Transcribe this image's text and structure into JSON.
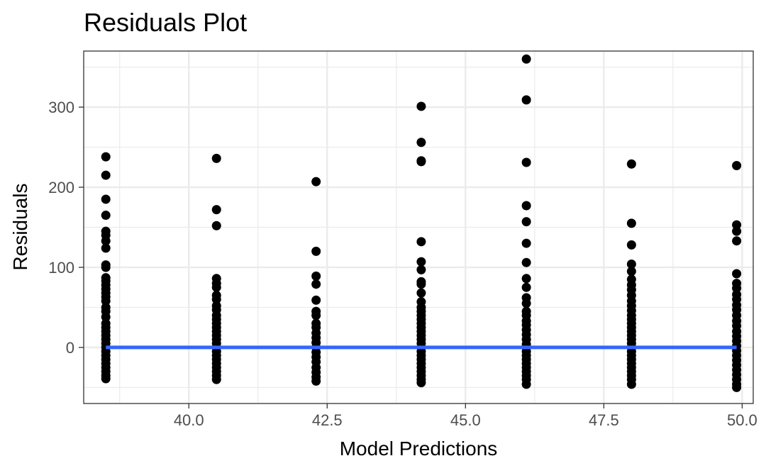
{
  "chart_data": {
    "type": "scatter",
    "title": "Residuals Plot",
    "xlabel": "Model Predictions",
    "ylabel": "Residuals",
    "xlim": [
      38.1,
      50.2
    ],
    "ylim": [
      -70,
      370
    ],
    "x_ticks": [
      40.0,
      42.5,
      45.0,
      47.5,
      50.0
    ],
    "x_tick_labels": [
      "40.0",
      "42.5",
      "45.0",
      "47.5",
      "50.0"
    ],
    "y_ticks": [
      0,
      100,
      200,
      300
    ],
    "y_tick_labels": [
      "0",
      "100",
      "200",
      "300"
    ],
    "grid": true,
    "colors": {
      "points": "#000000",
      "fit_line": "#3366ff",
      "grid": "#ebebeb",
      "panel_border": "#333333"
    },
    "series": [
      {
        "type": "scatter",
        "points": [
          {
            "x": 38.5,
            "y": 238
          },
          {
            "x": 38.5,
            "y": 215
          },
          {
            "x": 38.5,
            "y": 185
          },
          {
            "x": 38.5,
            "y": 165
          },
          {
            "x": 38.5,
            "y": 145
          },
          {
            "x": 38.5,
            "y": 140
          },
          {
            "x": 38.5,
            "y": 133
          },
          {
            "x": 38.5,
            "y": 124
          },
          {
            "x": 38.5,
            "y": 103
          },
          {
            "x": 38.5,
            "y": 100
          },
          {
            "x": 38.5,
            "y": 87
          },
          {
            "x": 38.5,
            "y": 83
          },
          {
            "x": 38.5,
            "y": 78
          },
          {
            "x": 38.5,
            "y": 73
          },
          {
            "x": 38.5,
            "y": 68
          },
          {
            "x": 38.5,
            "y": 63
          },
          {
            "x": 38.5,
            "y": 58
          },
          {
            "x": 38.5,
            "y": 50
          },
          {
            "x": 38.5,
            "y": 45
          },
          {
            "x": 38.5,
            "y": 38
          },
          {
            "x": 38.5,
            "y": 30
          },
          {
            "x": 38.5,
            "y": 25
          },
          {
            "x": 38.5,
            "y": 20
          },
          {
            "x": 38.5,
            "y": 15
          },
          {
            "x": 38.5,
            "y": 10
          },
          {
            "x": 38.5,
            "y": 5
          },
          {
            "x": 38.5,
            "y": 0
          },
          {
            "x": 38.5,
            "y": -5
          },
          {
            "x": 38.5,
            "y": -10
          },
          {
            "x": 38.5,
            "y": -15
          },
          {
            "x": 38.5,
            "y": -20
          },
          {
            "x": 38.5,
            "y": -25
          },
          {
            "x": 38.5,
            "y": -30
          },
          {
            "x": 38.5,
            "y": -35
          },
          {
            "x": 38.5,
            "y": -39
          },
          {
            "x": 40.5,
            "y": 236
          },
          {
            "x": 40.5,
            "y": 172
          },
          {
            "x": 40.5,
            "y": 152
          },
          {
            "x": 40.5,
            "y": 86
          },
          {
            "x": 40.5,
            "y": 80
          },
          {
            "x": 40.5,
            "y": 75
          },
          {
            "x": 40.5,
            "y": 65
          },
          {
            "x": 40.5,
            "y": 60
          },
          {
            "x": 40.5,
            "y": 52
          },
          {
            "x": 40.5,
            "y": 47
          },
          {
            "x": 40.5,
            "y": 40
          },
          {
            "x": 40.5,
            "y": 35
          },
          {
            "x": 40.5,
            "y": 30
          },
          {
            "x": 40.5,
            "y": 25
          },
          {
            "x": 40.5,
            "y": 20
          },
          {
            "x": 40.5,
            "y": 15
          },
          {
            "x": 40.5,
            "y": 10
          },
          {
            "x": 40.5,
            "y": 5
          },
          {
            "x": 40.5,
            "y": 0
          },
          {
            "x": 40.5,
            "y": -5
          },
          {
            "x": 40.5,
            "y": -10
          },
          {
            "x": 40.5,
            "y": -15
          },
          {
            "x": 40.5,
            "y": -20
          },
          {
            "x": 40.5,
            "y": -25
          },
          {
            "x": 40.5,
            "y": -30
          },
          {
            "x": 40.5,
            "y": -35
          },
          {
            "x": 40.5,
            "y": -40
          },
          {
            "x": 42.3,
            "y": 207
          },
          {
            "x": 42.3,
            "y": 120
          },
          {
            "x": 42.3,
            "y": 89
          },
          {
            "x": 42.3,
            "y": 79
          },
          {
            "x": 42.3,
            "y": 59
          },
          {
            "x": 42.3,
            "y": 45
          },
          {
            "x": 42.3,
            "y": 40
          },
          {
            "x": 42.3,
            "y": 30
          },
          {
            "x": 42.3,
            "y": 25
          },
          {
            "x": 42.3,
            "y": 18
          },
          {
            "x": 42.3,
            "y": 12
          },
          {
            "x": 42.3,
            "y": 6
          },
          {
            "x": 42.3,
            "y": 0
          },
          {
            "x": 42.3,
            "y": -6
          },
          {
            "x": 42.3,
            "y": -12
          },
          {
            "x": 42.3,
            "y": -18
          },
          {
            "x": 42.3,
            "y": -25
          },
          {
            "x": 42.3,
            "y": -31
          },
          {
            "x": 42.3,
            "y": -37
          },
          {
            "x": 42.3,
            "y": -42
          },
          {
            "x": 44.2,
            "y": 301
          },
          {
            "x": 44.2,
            "y": 256
          },
          {
            "x": 44.2,
            "y": 233
          },
          {
            "x": 44.2,
            "y": 232
          },
          {
            "x": 44.2,
            "y": 132
          },
          {
            "x": 44.2,
            "y": 107
          },
          {
            "x": 44.2,
            "y": 97
          },
          {
            "x": 44.2,
            "y": 82
          },
          {
            "x": 44.2,
            "y": 79
          },
          {
            "x": 44.2,
            "y": 68
          },
          {
            "x": 44.2,
            "y": 57
          },
          {
            "x": 44.2,
            "y": 50
          },
          {
            "x": 44.2,
            "y": 45
          },
          {
            "x": 44.2,
            "y": 40
          },
          {
            "x": 44.2,
            "y": 35
          },
          {
            "x": 44.2,
            "y": 30
          },
          {
            "x": 44.2,
            "y": 25
          },
          {
            "x": 44.2,
            "y": 20
          },
          {
            "x": 44.2,
            "y": 15
          },
          {
            "x": 44.2,
            "y": 10
          },
          {
            "x": 44.2,
            "y": 5
          },
          {
            "x": 44.2,
            "y": 0
          },
          {
            "x": 44.2,
            "y": -5
          },
          {
            "x": 44.2,
            "y": -10
          },
          {
            "x": 44.2,
            "y": -15
          },
          {
            "x": 44.2,
            "y": -20
          },
          {
            "x": 44.2,
            "y": -25
          },
          {
            "x": 44.2,
            "y": -30
          },
          {
            "x": 44.2,
            "y": -35
          },
          {
            "x": 44.2,
            "y": -40
          },
          {
            "x": 44.2,
            "y": -44
          },
          {
            "x": 46.1,
            "y": 360
          },
          {
            "x": 46.1,
            "y": 309
          },
          {
            "x": 46.1,
            "y": 231
          },
          {
            "x": 46.1,
            "y": 177
          },
          {
            "x": 46.1,
            "y": 157
          },
          {
            "x": 46.1,
            "y": 130
          },
          {
            "x": 46.1,
            "y": 106
          },
          {
            "x": 46.1,
            "y": 86
          },
          {
            "x": 46.1,
            "y": 75
          },
          {
            "x": 46.1,
            "y": 62
          },
          {
            "x": 46.1,
            "y": 55
          },
          {
            "x": 46.1,
            "y": 45
          },
          {
            "x": 46.1,
            "y": 40
          },
          {
            "x": 46.1,
            "y": 33
          },
          {
            "x": 46.1,
            "y": 28
          },
          {
            "x": 46.1,
            "y": 22
          },
          {
            "x": 46.1,
            "y": 16
          },
          {
            "x": 46.1,
            "y": 10
          },
          {
            "x": 46.1,
            "y": 4
          },
          {
            "x": 46.1,
            "y": 0
          },
          {
            "x": 46.1,
            "y": -5
          },
          {
            "x": 46.1,
            "y": -10
          },
          {
            "x": 46.1,
            "y": -15
          },
          {
            "x": 46.1,
            "y": -20
          },
          {
            "x": 46.1,
            "y": -25
          },
          {
            "x": 46.1,
            "y": -30
          },
          {
            "x": 46.1,
            "y": -35
          },
          {
            "x": 46.1,
            "y": -40
          },
          {
            "x": 46.1,
            "y": -46
          },
          {
            "x": 48.0,
            "y": 229
          },
          {
            "x": 48.0,
            "y": 155
          },
          {
            "x": 48.0,
            "y": 128
          },
          {
            "x": 48.0,
            "y": 104
          },
          {
            "x": 48.0,
            "y": 95
          },
          {
            "x": 48.0,
            "y": 85
          },
          {
            "x": 48.0,
            "y": 78
          },
          {
            "x": 48.0,
            "y": 72
          },
          {
            "x": 48.0,
            "y": 65
          },
          {
            "x": 48.0,
            "y": 58
          },
          {
            "x": 48.0,
            "y": 52
          },
          {
            "x": 48.0,
            "y": 46
          },
          {
            "x": 48.0,
            "y": 40
          },
          {
            "x": 48.0,
            "y": 35
          },
          {
            "x": 48.0,
            "y": 30
          },
          {
            "x": 48.0,
            "y": 25
          },
          {
            "x": 48.0,
            "y": 20
          },
          {
            "x": 48.0,
            "y": 15
          },
          {
            "x": 48.0,
            "y": 10
          },
          {
            "x": 48.0,
            "y": 5
          },
          {
            "x": 48.0,
            "y": 0
          },
          {
            "x": 48.0,
            "y": -5
          },
          {
            "x": 48.0,
            "y": -10
          },
          {
            "x": 48.0,
            "y": -15
          },
          {
            "x": 48.0,
            "y": -20
          },
          {
            "x": 48.0,
            "y": -25
          },
          {
            "x": 48.0,
            "y": -30
          },
          {
            "x": 48.0,
            "y": -35
          },
          {
            "x": 48.0,
            "y": -40
          },
          {
            "x": 48.0,
            "y": -46
          },
          {
            "x": 49.9,
            "y": 227
          },
          {
            "x": 49.9,
            "y": 153
          },
          {
            "x": 49.9,
            "y": 145
          },
          {
            "x": 49.9,
            "y": 133
          },
          {
            "x": 49.9,
            "y": 92
          },
          {
            "x": 49.9,
            "y": 80
          },
          {
            "x": 49.9,
            "y": 74
          },
          {
            "x": 49.9,
            "y": 66
          },
          {
            "x": 49.9,
            "y": 60
          },
          {
            "x": 49.9,
            "y": 53
          },
          {
            "x": 49.9,
            "y": 47
          },
          {
            "x": 49.9,
            "y": 40
          },
          {
            "x": 49.9,
            "y": 33
          },
          {
            "x": 49.9,
            "y": 27
          },
          {
            "x": 49.9,
            "y": 20
          },
          {
            "x": 49.9,
            "y": 14
          },
          {
            "x": 49.9,
            "y": 8
          },
          {
            "x": 49.9,
            "y": 2
          },
          {
            "x": 49.9,
            "y": -4
          },
          {
            "x": 49.9,
            "y": -10
          },
          {
            "x": 49.9,
            "y": -16
          },
          {
            "x": 49.9,
            "y": -22
          },
          {
            "x": 49.9,
            "y": -28
          },
          {
            "x": 49.9,
            "y": -34
          },
          {
            "x": 49.9,
            "y": -40
          },
          {
            "x": 49.9,
            "y": -46
          },
          {
            "x": 49.9,
            "y": -50
          }
        ]
      },
      {
        "type": "line",
        "x": [
          38.5,
          49.9
        ],
        "y": [
          0,
          0
        ]
      }
    ]
  }
}
